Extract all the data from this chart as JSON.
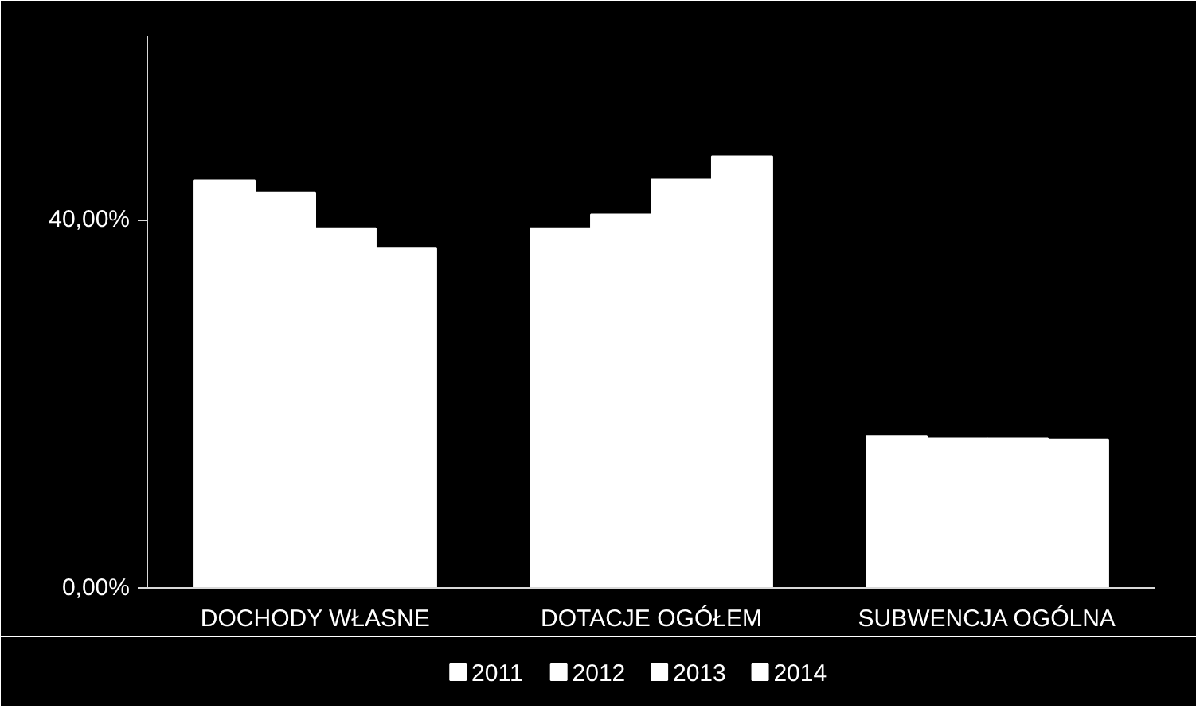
{
  "chart_data": {
    "type": "bar",
    "categories": [
      "DOCHODY WŁASNE",
      "DOTACJE OGÓŁEM",
      "SUBWENCJA OGÓLNA"
    ],
    "series": [
      {
        "name": "2011",
        "color": "#ffffff",
        "values": [
          44.3,
          39.1,
          16.5
        ]
      },
      {
        "name": "2012",
        "color": "#ffffff",
        "values": [
          43.0,
          40.6,
          16.3
        ]
      },
      {
        "name": "2013",
        "color": "#ffffff",
        "values": [
          39.1,
          44.4,
          16.3
        ]
      },
      {
        "name": "2014",
        "color": "#ffffff",
        "values": [
          36.9,
          46.9,
          16.1
        ]
      }
    ],
    "ylim": [
      0,
      60
    ],
    "yticks": [
      {
        "value": 0,
        "label": "0,00%"
      },
      {
        "value": 40,
        "label": "40,00%"
      }
    ],
    "grid": false,
    "legend": "bottom"
  }
}
